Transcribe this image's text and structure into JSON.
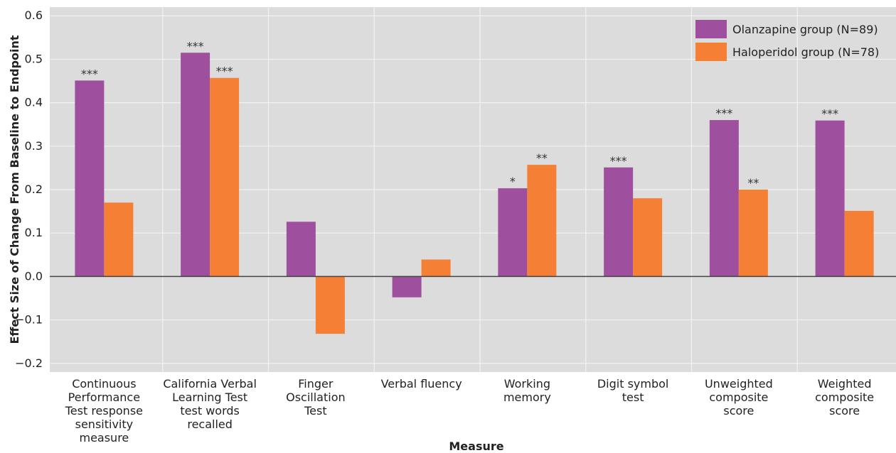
{
  "chart_data": {
    "type": "bar",
    "xlabel": "Measure",
    "ylabel": "Effect Size of Change From Baseline to Endpoint",
    "ylim": [
      -0.22,
      0.62
    ],
    "yticks": [
      "0.6",
      "0.5",
      "0.4",
      "0.3",
      "0.2",
      "0.1",
      "0.0",
      "−0.1",
      "−0.2"
    ],
    "ytick_values": [
      0.6,
      0.5,
      0.4,
      0.3,
      0.2,
      0.1,
      0.0,
      -0.1,
      -0.2
    ],
    "grid": true,
    "legend_position": "top-right",
    "categories": [
      [
        "Continuous",
        "Performance",
        "Test response",
        "sensitivity",
        "measure"
      ],
      [
        "California Verbal",
        "Learning Test",
        "test words",
        "recalled"
      ],
      [
        "Finger",
        "Oscillation",
        "Test"
      ],
      [
        "Verbal fluency"
      ],
      [
        "Working",
        "memory"
      ],
      [
        "Digit symbol",
        "test"
      ],
      [
        "Unweighted",
        "composite",
        "score"
      ],
      [
        "Weighted",
        "composite",
        "score"
      ]
    ],
    "series": [
      {
        "name": "Olanzapine group (N=89)",
        "color": "#9e4f9e",
        "values": [
          0.451,
          0.515,
          0.126,
          -0.048,
          0.203,
          0.251,
          0.36,
          0.359
        ],
        "significance": [
          "***",
          "***",
          "",
          "",
          "*",
          "***",
          "***",
          "***"
        ]
      },
      {
        "name": "Haloperidol group (N=78)",
        "color": "#f47f35",
        "values": [
          0.17,
          0.457,
          -0.132,
          0.039,
          0.257,
          0.18,
          0.2,
          0.151
        ],
        "significance": [
          "",
          "***",
          "",
          "",
          "**",
          "",
          "**",
          ""
        ]
      }
    ],
    "colors": {
      "plot_background": "#dcdcdc",
      "gridline": "#f2f2f2",
      "zero_line": "#444444"
    }
  }
}
